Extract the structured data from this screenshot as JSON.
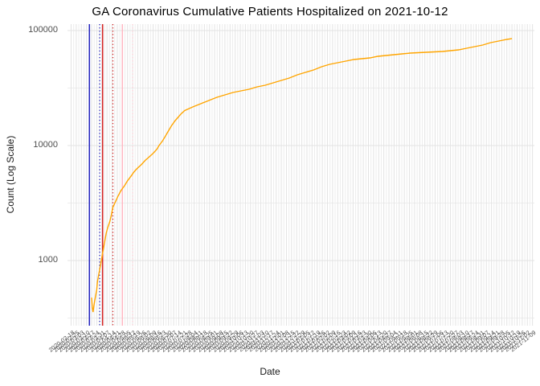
{
  "colors": {
    "line": "#FFA500",
    "major_grid": "#E3E3E3",
    "minor_grid": "#EDEDED",
    "background": "#FFFFFF",
    "title_text": "#000000",
    "axis_text": "#4D4D4D",
    "blue_line": "#2323BF",
    "red_line": "#D42222",
    "pink_line": "#FFB6C1",
    "pink_light_line": "#FFCDD6"
  },
  "chart_data": {
    "type": "line",
    "title": "GA Coronavirus Cumulative Patients Hospitalized on 2021-10-12",
    "xlabel": "Date",
    "ylabel": "Count (Log Scale)",
    "x_scale": "date",
    "y_scale": "log10",
    "grid": true,
    "legend": false,
    "x_range_shown": [
      "2020-02-18",
      "2021-11-09"
    ],
    "y_range_shown": [
      271,
      113800
    ],
    "y_tick_labels": [
      "100000",
      "10000",
      "1000"
    ],
    "y_tick_values": [
      100000,
      10000,
      1000
    ],
    "y_minor_tick_values": [
      31623,
      3162,
      316
    ],
    "x_tick_labels": [
      "2020-02-18",
      "2020-02-25",
      "2020-03-03",
      "2020-03-10",
      "2020-03-17",
      "2020-03-24",
      "2020-03-31",
      "2020-04-07",
      "2020-04-14",
      "2020-04-21",
      "2020-04-28",
      "2020-05-05",
      "2020-05-12",
      "2020-05-19",
      "2020-05-26",
      "2020-06-02",
      "2020-06-09",
      "2020-06-16",
      "2020-06-23",
      "2020-06-30",
      "2020-07-07",
      "2020-07-14",
      "2020-07-21",
      "2020-07-28",
      "2020-08-04",
      "2020-08-11",
      "2020-08-18",
      "2020-08-25",
      "2020-09-01",
      "2020-09-08",
      "2020-09-15",
      "2020-09-22",
      "2020-09-29",
      "2020-10-06",
      "2020-10-13",
      "2020-10-20",
      "2020-10-27",
      "2020-11-03",
      "2020-11-10",
      "2020-11-17",
      "2020-11-24",
      "2020-12-01",
      "2020-12-08",
      "2020-12-15",
      "2020-12-22",
      "2020-12-29",
      "2021-01-05",
      "2021-01-12",
      "2021-01-19",
      "2021-01-26",
      "2021-02-02",
      "2021-02-09",
      "2021-02-16",
      "2021-02-23",
      "2021-03-02",
      "2021-03-09",
      "2021-03-16",
      "2021-03-23",
      "2021-03-30",
      "2021-04-06",
      "2021-04-13",
      "2021-04-20",
      "2021-04-27",
      "2021-05-04",
      "2021-05-11",
      "2021-05-18",
      "2021-05-25",
      "2021-06-01",
      "2021-06-08",
      "2021-06-15",
      "2021-06-22",
      "2021-06-29",
      "2021-07-06",
      "2021-07-13",
      "2021-07-20",
      "2021-07-27",
      "2021-08-03",
      "2021-08-10",
      "2021-08-17",
      "2021-08-24",
      "2021-08-31",
      "2021-09-07",
      "2021-09-14",
      "2021-09-21",
      "2021-09-28",
      "2021-10-05",
      "2021-10-12",
      "2021-10-19",
      "2021-10-26",
      "2021-11-02",
      "2021-11-09"
    ],
    "annotation_vlines": [
      {
        "name": "blue-solid",
        "color_key": "blue_line",
        "style": "solid",
        "date": "2020-03-14"
      },
      {
        "name": "blue-dotted",
        "color_key": "blue_line",
        "style": "dotted",
        "date": "2020-03-28"
      },
      {
        "name": "red-solid",
        "color_key": "red_line",
        "style": "solid",
        "date": "2020-04-01"
      },
      {
        "name": "red-dotted",
        "color_key": "red_line",
        "style": "dotted",
        "date": "2020-04-15"
      },
      {
        "name": "pink-solid",
        "color_key": "pink_line",
        "style": "solid",
        "date": "2020-04-28"
      },
      {
        "name": "pink-dotted",
        "color_key": "pink_light_line",
        "style": "dotted",
        "date": "2020-05-12"
      }
    ],
    "series": [
      {
        "name": "Cumulative Patients Hospitalized",
        "color": "#FFA500",
        "points": [
          [
            "2020-03-17",
            476
          ],
          [
            "2020-03-18",
            390
          ],
          [
            "2020-03-19",
            357
          ],
          [
            "2020-03-20",
            400
          ],
          [
            "2020-03-21",
            440
          ],
          [
            "2020-03-24",
            560
          ],
          [
            "2020-03-25",
            658
          ],
          [
            "2020-03-27",
            772
          ],
          [
            "2020-03-29",
            908
          ],
          [
            "2020-03-31",
            1069
          ],
          [
            "2020-04-02",
            1254
          ],
          [
            "2020-04-04",
            1473
          ],
          [
            "2020-04-06",
            1733
          ],
          [
            "2020-04-08",
            1938
          ],
          [
            "2020-04-11",
            2201
          ],
          [
            "2020-04-13",
            2500
          ],
          [
            "2020-04-15",
            2897
          ],
          [
            "2020-04-19",
            3296
          ],
          [
            "2020-04-22",
            3628
          ],
          [
            "2020-04-26",
            4060
          ],
          [
            "2020-05-01",
            4477
          ],
          [
            "2020-05-05",
            4938
          ],
          [
            "2020-05-10",
            5445
          ],
          [
            "2020-05-14",
            5915
          ],
          [
            "2020-05-18",
            6310
          ],
          [
            "2020-05-24",
            6840
          ],
          [
            "2020-05-29",
            7413
          ],
          [
            "2020-06-03",
            7907
          ],
          [
            "2020-06-09",
            8570
          ],
          [
            "2020-06-14",
            9270
          ],
          [
            "2020-06-17",
            10000
          ],
          [
            "2020-06-22",
            11010
          ],
          [
            "2020-06-26",
            12170
          ],
          [
            "2020-06-30",
            13450
          ],
          [
            "2020-07-04",
            14870
          ],
          [
            "2020-07-09",
            16440
          ],
          [
            "2020-07-13",
            17590
          ],
          [
            "2020-07-17",
            18830
          ],
          [
            "2020-07-22",
            20160
          ],
          [
            "2020-08-02",
            21670
          ],
          [
            "2020-08-13",
            23100
          ],
          [
            "2020-08-24",
            24640
          ],
          [
            "2020-09-04",
            26280
          ],
          [
            "2020-09-15",
            27580
          ],
          [
            "2020-09-26",
            28940
          ],
          [
            "2020-10-07",
            29890
          ],
          [
            "2020-10-18",
            30870
          ],
          [
            "2020-10-29",
            32400
          ],
          [
            "2020-11-09",
            33460
          ],
          [
            "2020-11-20",
            35120
          ],
          [
            "2020-12-01",
            36860
          ],
          [
            "2020-12-12",
            38680
          ],
          [
            "2020-12-23",
            41250
          ],
          [
            "2021-01-03",
            43290
          ],
          [
            "2021-01-14",
            45440
          ],
          [
            "2021-01-25",
            48460
          ],
          [
            "2021-02-05",
            50860
          ],
          [
            "2021-02-16",
            52530
          ],
          [
            "2021-02-27",
            54250
          ],
          [
            "2021-03-10",
            56030
          ],
          [
            "2021-03-21",
            56930
          ],
          [
            "2021-04-01",
            57850
          ],
          [
            "2021-04-12",
            59750
          ],
          [
            "2021-04-23",
            60720
          ],
          [
            "2021-05-04",
            61700
          ],
          [
            "2021-05-15",
            62700
          ],
          [
            "2021-05-26",
            63720
          ],
          [
            "2021-06-17",
            64760
          ],
          [
            "2021-07-09",
            65800
          ],
          [
            "2021-07-20",
            66870
          ],
          [
            "2021-07-31",
            67950
          ],
          [
            "2021-08-11",
            70180
          ],
          [
            "2021-08-22",
            72460
          ],
          [
            "2021-09-02",
            74830
          ],
          [
            "2021-09-13",
            78550
          ],
          [
            "2021-09-24",
            81120
          ],
          [
            "2021-10-05",
            83780
          ],
          [
            "2021-10-12",
            85140
          ]
        ]
      }
    ]
  }
}
